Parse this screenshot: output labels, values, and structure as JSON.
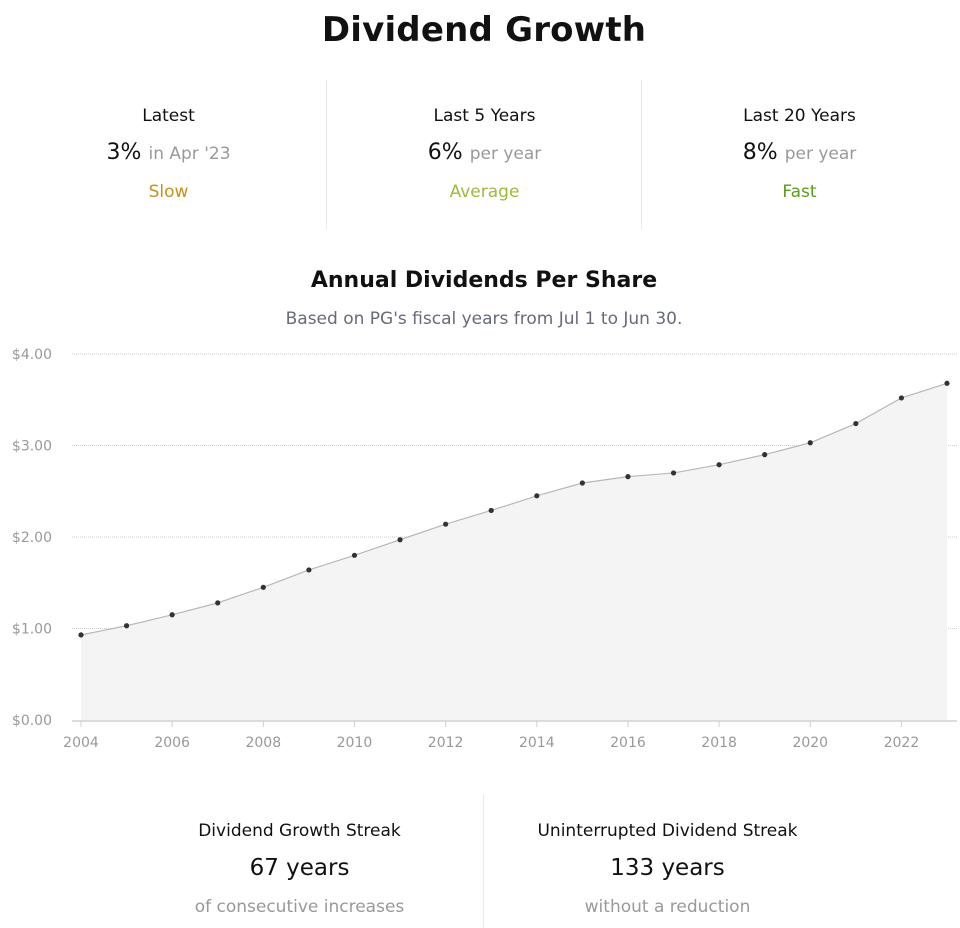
{
  "header": {
    "title": "Dividend Growth"
  },
  "stats": [
    {
      "label": "Latest",
      "value": "3%",
      "suffix": "in Apr '23",
      "rating": "Slow",
      "rating_color": "#c8901a"
    },
    {
      "label": "Last 5 Years",
      "value": "6%",
      "suffix": "per year",
      "rating": "Average",
      "rating_color": "#9dbb3c"
    },
    {
      "label": "Last 20 Years",
      "value": "8%",
      "suffix": "per year",
      "rating": "Fast",
      "rating_color": "#5c9b1c"
    }
  ],
  "chart_data": {
    "type": "area",
    "title": "Annual Dividends Per Share",
    "subtitle": "Based on PG's fiscal years from Jul 1 to Jun 30.",
    "xlabel": "",
    "ylabel": "",
    "x": [
      2004,
      2005,
      2006,
      2007,
      2008,
      2009,
      2010,
      2011,
      2012,
      2013,
      2014,
      2015,
      2016,
      2017,
      2018,
      2019,
      2020,
      2021,
      2022,
      2023
    ],
    "series": [
      {
        "values": [
          0.93,
          1.03,
          1.15,
          1.28,
          1.45,
          1.64,
          1.8,
          1.97,
          2.14,
          2.29,
          2.45,
          2.59,
          2.66,
          2.7,
          2.79,
          2.9,
          3.03,
          3.24,
          3.52,
          3.68
        ]
      }
    ],
    "xlim": [
      2004,
      2023
    ],
    "ylim": [
      0,
      4
    ],
    "y_ticks": [
      "$0.00",
      "$1.00",
      "$2.00",
      "$3.00",
      "$4.00"
    ],
    "x_ticks": [
      "2004",
      "2006",
      "2008",
      "2010",
      "2012",
      "2014",
      "2016",
      "2018",
      "2020",
      "2022"
    ],
    "grid": true,
    "legend": "none",
    "colors": {
      "fill": "#f4f4f4",
      "line": "#b8b8b8",
      "point": "#333333",
      "grid": "#cccccc",
      "axis": "#d0d0d0"
    }
  },
  "streaks": [
    {
      "label": "Dividend Growth Streak",
      "value": "67 years",
      "note": "of consecutive increases"
    },
    {
      "label": "Uninterrupted Dividend Streak",
      "value": "133 years",
      "note": "without a reduction"
    }
  ]
}
